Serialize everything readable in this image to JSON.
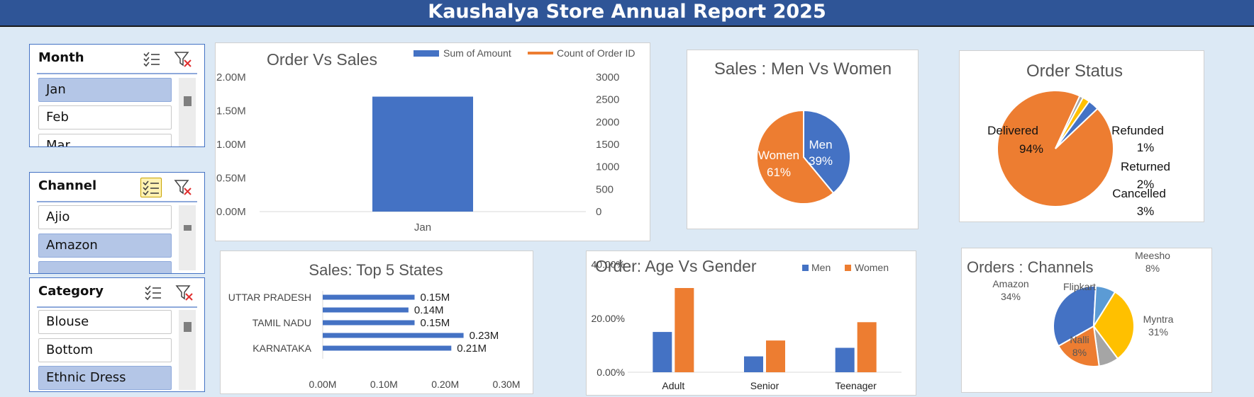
{
  "report": {
    "title": "Kaushalya Store Annual Report 2025"
  },
  "slicers": [
    {
      "label": "Month",
      "items": [
        "Jan",
        "Feb",
        "Mar"
      ],
      "selected": [
        true,
        false,
        false
      ],
      "multiselect_active": false
    },
    {
      "label": "Channel",
      "items": [
        "Ajio",
        "Amazon"
      ],
      "selected": [
        false,
        true
      ],
      "multiselect_active": true
    },
    {
      "label": "Category",
      "items": [
        "Blouse",
        "Bottom",
        "Ethnic Dress"
      ],
      "selected": [
        false,
        false,
        true
      ],
      "multiselect_active": false
    }
  ],
  "colors": {
    "blue": "#4472c4",
    "orange": "#ed7d31",
    "gray": "#a5a5a5",
    "gold": "#ffc000",
    "lightblue": "#5b9bd5",
    "banner": "#2f5597"
  },
  "chart_data": [
    {
      "id": "order-vs-sales",
      "type": "bar",
      "title": "Order Vs Sales",
      "categories": [
        "Jan"
      ],
      "series": [
        {
          "name": "Sum of Amount",
          "values": [
            1710000
          ],
          "axis": "left",
          "kind": "bar"
        },
        {
          "name": "Count of Order ID",
          "values": [
            null
          ],
          "axis": "right",
          "kind": "line"
        }
      ],
      "yticks_left": [
        "0.00M",
        "0.50M",
        "1.00M",
        "1.50M",
        "2.00M"
      ],
      "yticks_right": [
        "0",
        "500",
        "1000",
        "1500",
        "2000",
        "2500",
        "3000"
      ],
      "ylim": [
        0,
        2000000
      ],
      "legend": "top-right"
    },
    {
      "id": "men-vs-women",
      "type": "pie",
      "title": "Sales : Men Vs Women",
      "slices": [
        {
          "name": "Men",
          "value": 39,
          "label": "39%"
        },
        {
          "name": "Women",
          "value": 61,
          "label": "61%"
        }
      ]
    },
    {
      "id": "order-status",
      "type": "pie",
      "title": "Order Status",
      "slices": [
        {
          "name": "Delivered",
          "value": 94,
          "label": "94%"
        },
        {
          "name": "Refunded",
          "value": 1,
          "label": "1%"
        },
        {
          "name": "Returned",
          "value": 2,
          "label": "2%"
        },
        {
          "name": "Cancelled",
          "value": 3,
          "label": "3%"
        }
      ]
    },
    {
      "id": "top-states",
      "type": "bar",
      "orientation": "horizontal",
      "title": "Sales: Top 5 States",
      "categories": [
        "UTTAR PRADESH",
        "",
        "TAMIL NADU",
        "",
        "KARNATAKA"
      ],
      "values": [
        0.15,
        0.14,
        0.15,
        0.23,
        0.21
      ],
      "value_labels": [
        "0.15M",
        "0.14M",
        "0.15M",
        "0.23M",
        "0.21M"
      ],
      "xticks": [
        "0.00M",
        "0.10M",
        "0.20M",
        "0.30M"
      ],
      "xlim": [
        0,
        0.3
      ]
    },
    {
      "id": "age-vs-gender",
      "type": "bar",
      "title": "Order: Age Vs Gender",
      "categories": [
        "Adult",
        "Senior",
        "Teenager"
      ],
      "series": [
        {
          "name": "Men",
          "values": [
            16.5,
            6.5,
            10
          ]
        },
        {
          "name": "Women",
          "values": [
            34.5,
            13,
            20.5
          ]
        }
      ],
      "yticks": [
        "0.00%",
        "20.00%",
        "40.00%"
      ],
      "ylim": [
        0,
        40
      ],
      "legend": "top-right"
    },
    {
      "id": "channels",
      "type": "pie",
      "title": "Orders : Channels",
      "slices": [
        {
          "name": "Amazon",
          "value": 34,
          "label": "34%"
        },
        {
          "name": "Nalli",
          "value": 8,
          "label": "8%"
        },
        {
          "name": "Myntra",
          "value": 31,
          "label": "31%"
        },
        {
          "name": "Meesho",
          "value": 8,
          "label": "8%"
        },
        {
          "name": "Flipkart",
          "value": 19,
          "label": ""
        }
      ]
    }
  ]
}
